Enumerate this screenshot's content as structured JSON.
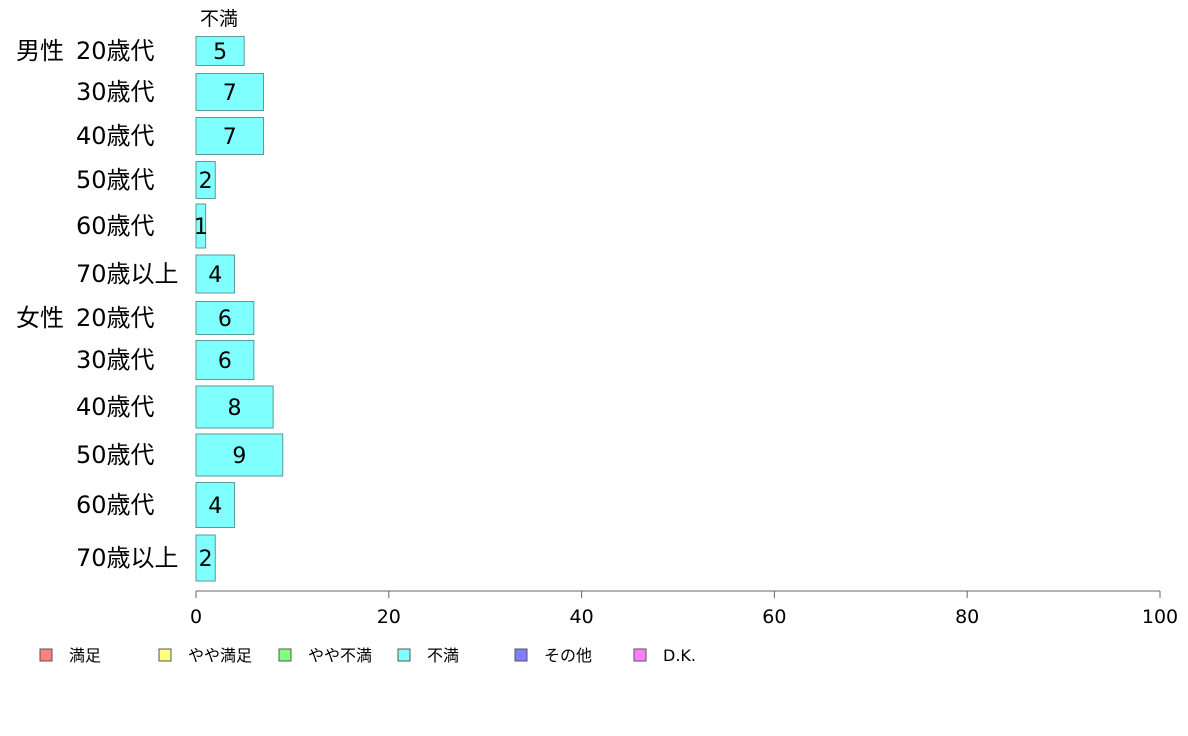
{
  "chart_data": {
    "type": "bar",
    "orientation": "horizontal",
    "stacked": true,
    "series_title": "不満",
    "groups": [
      {
        "label": "男性",
        "rows": [
          {
            "label": "20歳代",
            "value": 5
          },
          {
            "label": "30歳代",
            "value": 7
          },
          {
            "label": "40歳代",
            "value": 7
          },
          {
            "label": "50歳代",
            "value": 2
          },
          {
            "label": "60歳代",
            "value": 1
          },
          {
            "label": "70歳以上",
            "value": 4
          }
        ]
      },
      {
        "label": "女性",
        "rows": [
          {
            "label": "20歳代",
            "value": 6
          },
          {
            "label": "30歳代",
            "value": 6
          },
          {
            "label": "40歳代",
            "value": 8
          },
          {
            "label": "50歳代",
            "value": 9
          },
          {
            "label": "60歳代",
            "value": 4
          },
          {
            "label": "70歳以上",
            "value": 2
          }
        ]
      }
    ],
    "xlim": [
      0,
      100
    ],
    "xticks": [
      0,
      20,
      40,
      60,
      80,
      100
    ],
    "grid": false,
    "legend_position": "bottom",
    "legend": [
      {
        "name": "満足",
        "color": "#ff8080"
      },
      {
        "name": "やや満足",
        "color": "#ffff80"
      },
      {
        "name": "やや不満",
        "color": "#80ff80"
      },
      {
        "name": "不満",
        "color": "#80ffff"
      },
      {
        "name": "その他",
        "color": "#8080ff"
      },
      {
        "name": "D.K.",
        "color": "#ff80ff"
      }
    ],
    "bar_color": "#80ffff",
    "bar_stroke": "#5a9a9a"
  }
}
